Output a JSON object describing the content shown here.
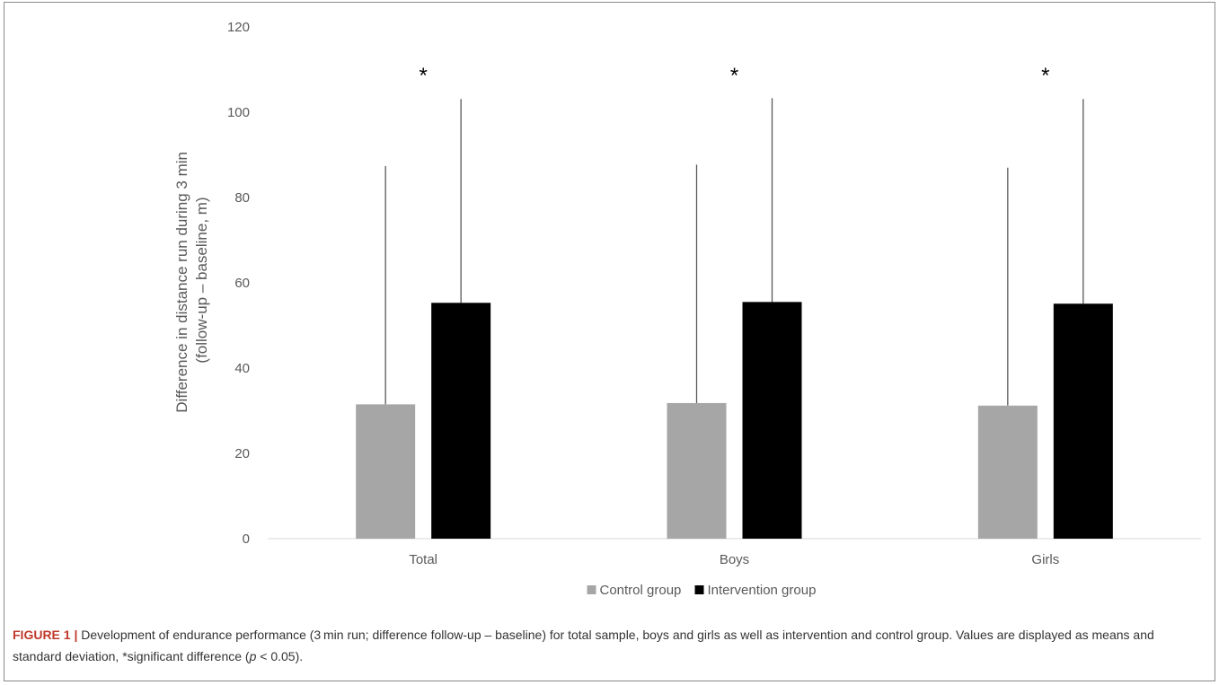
{
  "chart_data": {
    "type": "bar",
    "title": "",
    "xlabel": "",
    "ylabel_line1": "Difference in distance run during 3 min",
    "ylabel_line2": "(follow-up – baseline, m)",
    "ylim": [
      0,
      120
    ],
    "yticks": [
      0,
      20,
      40,
      60,
      80,
      100,
      120
    ],
    "categories": [
      "Total",
      "Boys",
      "Girls"
    ],
    "series": [
      {
        "name": "Control group",
        "color": "#a6a6a6",
        "values": [
          31.5,
          31.8,
          31.2
        ],
        "error_upper": [
          87.4,
          87.7,
          87.0
        ]
      },
      {
        "name": "Intervention group",
        "color": "#000000",
        "values": [
          55.3,
          55.5,
          55.1
        ],
        "error_upper": [
          103.1,
          103.3,
          103.1
        ]
      }
    ],
    "significance_markers": [
      "*",
      "*",
      "*"
    ],
    "legend_position": "bottom",
    "grid": false
  },
  "caption": {
    "figure_label": "FIGURE 1 |",
    "text_before_p": " Development of endurance performance (3 min run; difference follow-up – baseline) for total sample, boys and girls as well as intervention and control group. Values are displayed as means and standard deviation, *significant difference (",
    "p_symbol": "p",
    "text_after_p": " < 0.05)."
  }
}
